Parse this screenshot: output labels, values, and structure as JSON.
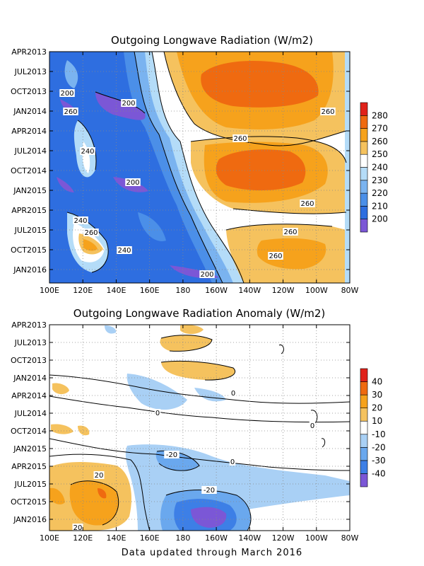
{
  "chart_data": [
    {
      "type": "heatmap",
      "title": "Outgoing Longwave Radiation (W/m2)",
      "x_ticks": [
        "100E",
        "120E",
        "140E",
        "160E",
        "180",
        "160W",
        "140W",
        "120W",
        "100W",
        "80W"
      ],
      "y_ticks": [
        "APR2013",
        "JUL2013",
        "OCT2013",
        "JAN2014",
        "APR2014",
        "JUL2014",
        "OCT2014",
        "JAN2015",
        "APR2015",
        "JUL2015",
        "OCT2015",
        "JAN2016"
      ],
      "colorbar_levels": [
        200,
        210,
        220,
        230,
        240,
        250,
        260,
        270,
        280
      ],
      "colorbar_colors": [
        "#7b57d6",
        "#2e6ee0",
        "#4b8fe8",
        "#7ab3f0",
        "#b4dcf8",
        "#ffffff",
        "#f5c25e",
        "#f6a21c",
        "#ef6a10",
        "#e0221a"
      ],
      "contour_labels": [
        "200",
        "200",
        "200",
        "200",
        "240",
        "240",
        "240",
        "260",
        "260",
        "260",
        "260",
        "260",
        "260",
        "260"
      ],
      "grid": true
    },
    {
      "type": "heatmap",
      "title": "Outgoing Longwave Radiation Anomaly (W/m2)",
      "x_ticks": [
        "100E",
        "120E",
        "140E",
        "160E",
        "180",
        "160W",
        "140W",
        "120W",
        "100W",
        "80W"
      ],
      "y_ticks": [
        "APR2013",
        "JUL2013",
        "OCT2013",
        "JAN2014",
        "APR2014",
        "JUL2014",
        "OCT2014",
        "JAN2015",
        "APR2015",
        "JUL2015",
        "OCT2015",
        "JAN2016"
      ],
      "colorbar_levels": [
        -40,
        -30,
        -20,
        -10,
        10,
        20,
        30,
        40
      ],
      "colorbar_colors": [
        "#7b57d6",
        "#3d7fe6",
        "#6aa8ee",
        "#a9d0f5",
        "#ffffff",
        "#f5c25e",
        "#f6a21c",
        "#ef6a10",
        "#e0221a"
      ],
      "contour_labels": [
        "-20",
        "-20",
        "0",
        "0",
        "0",
        "0",
        "20",
        "20"
      ],
      "grid": true
    }
  ],
  "footer": "Data updated through March 2016"
}
